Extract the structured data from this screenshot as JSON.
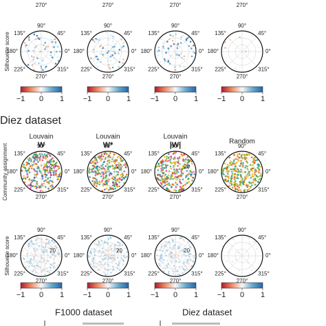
{
  "angle_labels": [
    "90°",
    "45°",
    "0°",
    "315°",
    "270°",
    "225°",
    "180°",
    "135°"
  ],
  "radial_label": "20",
  "colorbar_ticks": [
    {
      "value": -1,
      "label": "−1"
    },
    0,
    1
  ],
  "section_title": "Diez dataset",
  "columns": [
    {
      "title": "Louvain",
      "matrix": "W"
    },
    {
      "title": "Louvain",
      "matrix": "W*"
    },
    {
      "title": "Louvain",
      "matrix": "|W|"
    },
    {
      "title": "Random"
    }
  ],
  "row_labels": {
    "top": "Silhouette score",
    "community": "Community assignment",
    "silhouette": "Silhouette score"
  },
  "footer": [
    "F1000 dataset",
    "Diez dataset"
  ]
}
